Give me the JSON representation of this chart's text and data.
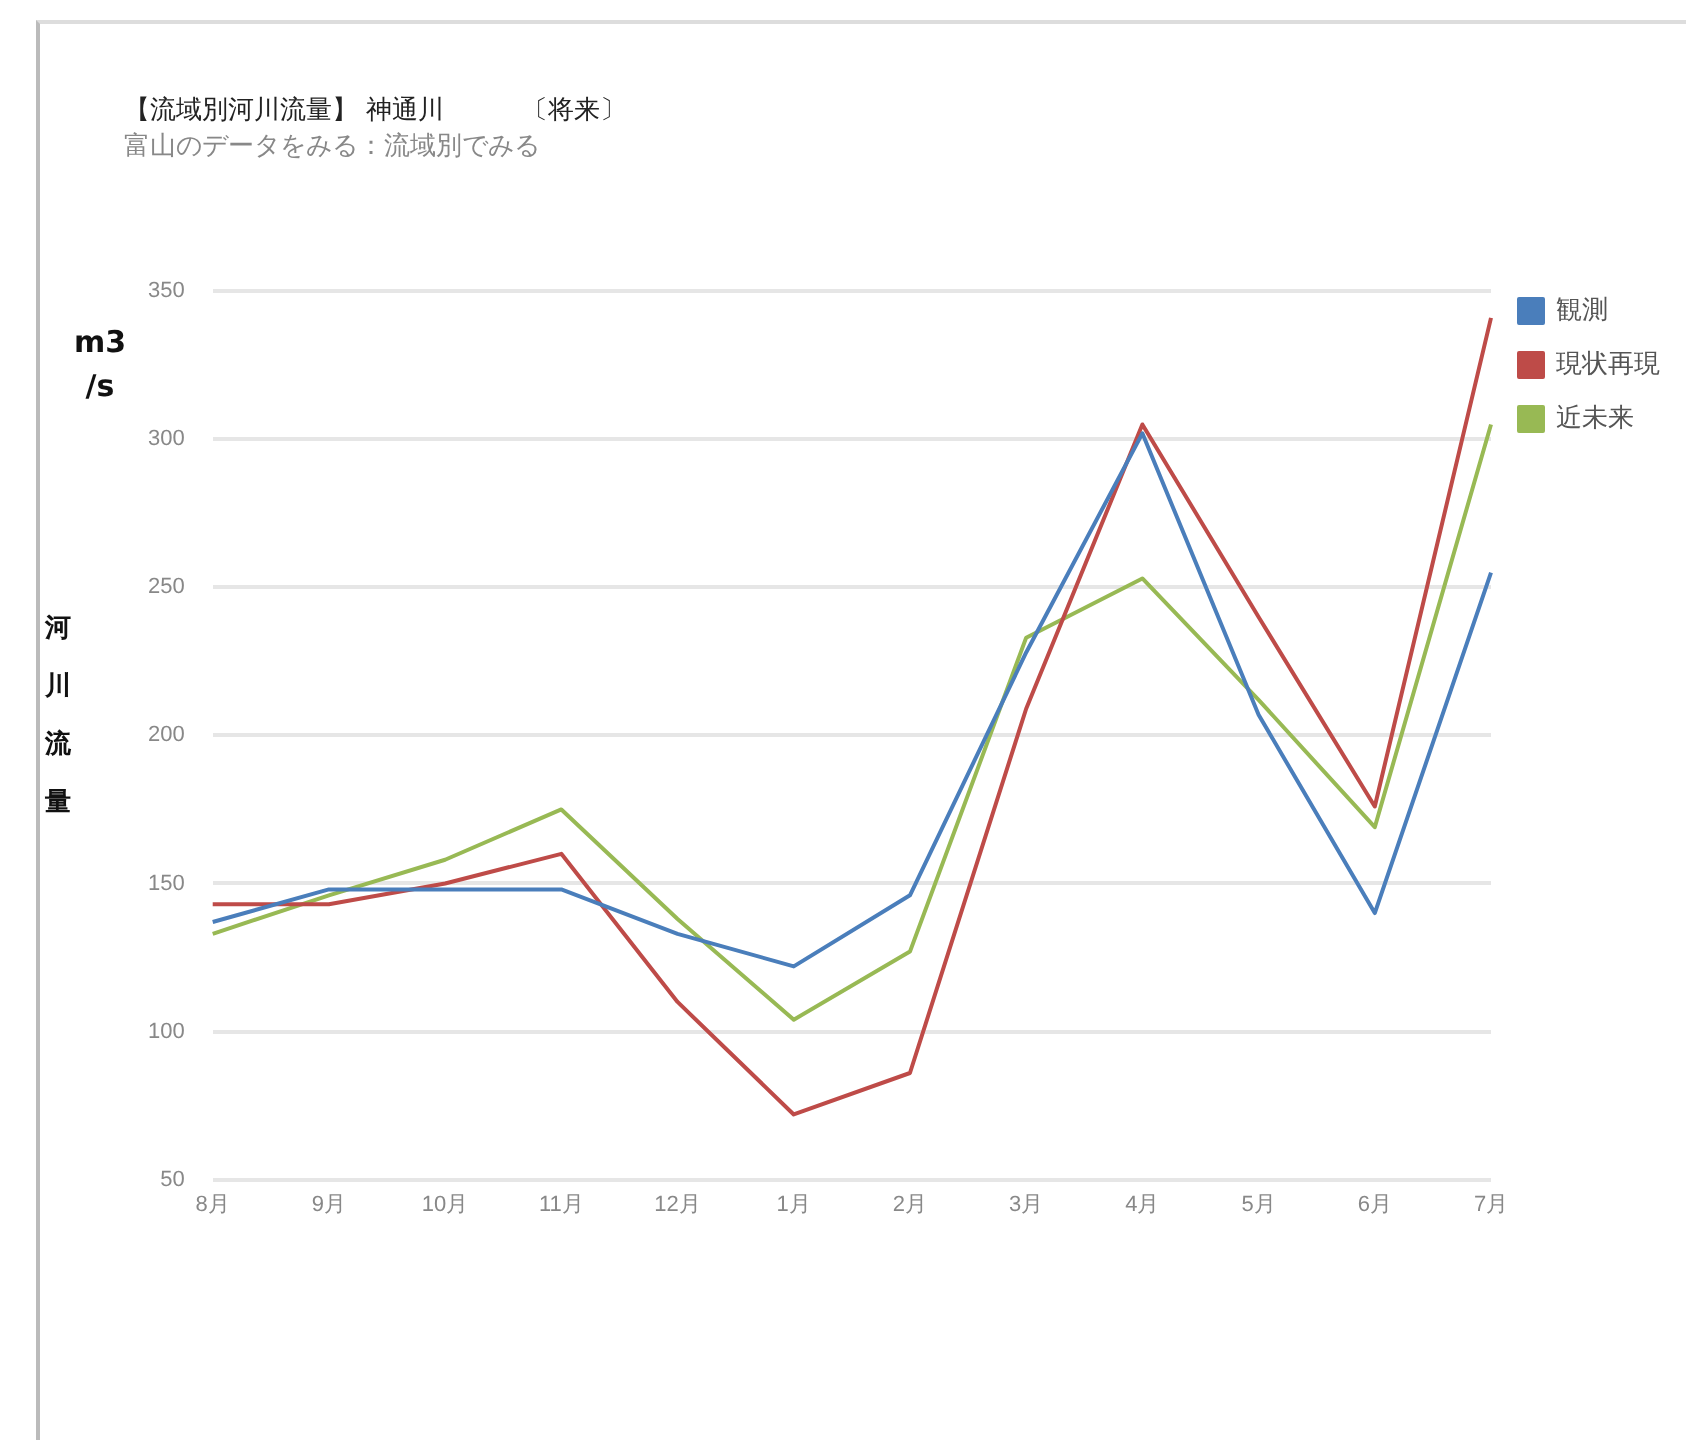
{
  "chart_data": {
    "type": "line",
    "title": "【流域別河川流量】 神通川　　　〔将来〕",
    "subtitle": "富山のデータをみる：流域別でみる",
    "ylabel": "河川流量",
    "annotations": [
      "m3/s"
    ],
    "categories": [
      "8月",
      "9月",
      "10月",
      "11月",
      "12月",
      "1月",
      "2月",
      "3月",
      "4月",
      "5月",
      "6月",
      "7月"
    ],
    "series": [
      {
        "name": "観測",
        "color": "#4a7ebb",
        "values": [
          137,
          148,
          148,
          148,
          133,
          122,
          146,
          228,
          302,
          207,
          140,
          255
        ]
      },
      {
        "name": "現状再現",
        "color": "#be4b48",
        "values": [
          143,
          143,
          150,
          160,
          110,
          72,
          86,
          209,
          305,
          240,
          176,
          341
        ]
      },
      {
        "name": "近未来",
        "color": "#98b954",
        "values": [
          133,
          146,
          158,
          175,
          138,
          104,
          127,
          233,
          253,
          212,
          169,
          305
        ]
      }
    ],
    "ylim": [
      50,
      350
    ],
    "yticks": [
      50,
      100,
      150,
      200,
      250,
      300,
      350
    ],
    "grid": "y",
    "legend": "right",
    "marker": "none",
    "line_style": "solid"
  }
}
